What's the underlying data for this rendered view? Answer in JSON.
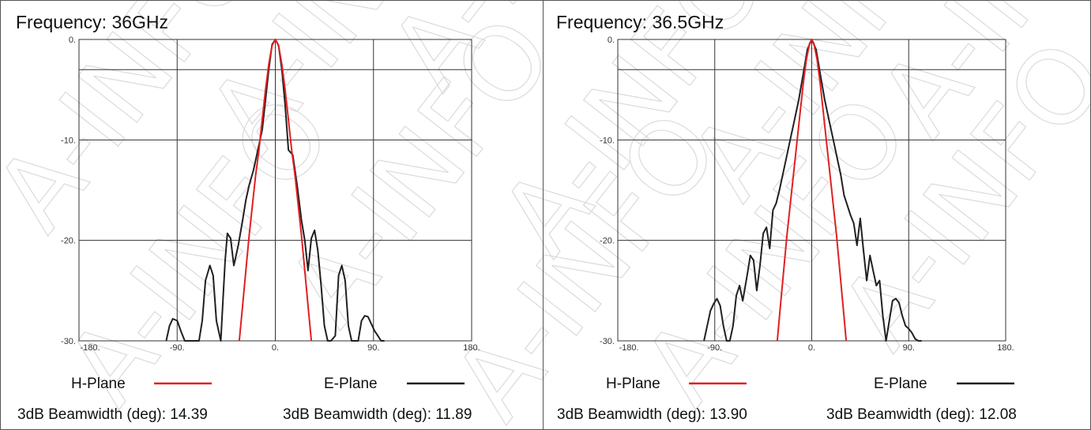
{
  "watermark": "A-INFO",
  "chart_data": [
    {
      "type": "line",
      "title": "Frequency: 36GHz",
      "x_ticks": [
        "-180.",
        "-90.",
        "0.",
        "90.",
        "180."
      ],
      "y_ticks": [
        "0.",
        "-10.",
        "-20.",
        "-30."
      ],
      "xlim": [
        -180,
        180
      ],
      "ylim": [
        -30,
        0
      ],
      "grid": true,
      "legend_position": "bottom",
      "series": [
        {
          "name": "H-Plane",
          "color": "#e02020",
          "x": [
            -33,
            -30,
            -27,
            -24,
            -21,
            -18,
            -15,
            -12,
            -9,
            -6,
            -3,
            0,
            3,
            6,
            9,
            12,
            15,
            18,
            21,
            24,
            27,
            30,
            33
          ],
          "y": [
            -30,
            -26.5,
            -23,
            -19.5,
            -16.5,
            -13.5,
            -11,
            -8,
            -5,
            -2.5,
            -0.6,
            0,
            -0.6,
            -2.5,
            -5,
            -8,
            -11,
            -13.5,
            -16.5,
            -19.5,
            -23,
            -26.5,
            -30
          ]
        },
        {
          "name": "E-Plane",
          "color": "#202020",
          "x": [
            -100,
            -97,
            -94,
            -90,
            -86,
            -83,
            -80,
            -77,
            -74,
            -70,
            -67,
            -64,
            -60,
            -57,
            -54,
            -50,
            -48,
            -46,
            -44,
            -41,
            -38,
            -34,
            -30,
            -27,
            -24,
            -20,
            -16,
            -12,
            -9,
            -6,
            -3,
            0,
            3,
            6,
            9,
            12,
            16,
            20,
            24,
            27,
            30,
            33,
            36,
            39,
            42,
            45,
            48,
            51,
            55,
            58,
            61,
            64,
            67,
            70,
            73,
            76,
            79,
            82,
            85,
            88,
            91,
            94,
            97,
            100
          ],
          "y": [
            -30,
            -28.5,
            -27.8,
            -28,
            -29.2,
            -30,
            -30,
            -30,
            -30,
            -30,
            -28,
            -24,
            -22.5,
            -23.5,
            -28,
            -30,
            -26,
            -22,
            -19.3,
            -19.8,
            -22.5,
            -20.5,
            -18,
            -16,
            -14.5,
            -13,
            -11,
            -9,
            -6,
            -3,
            -0.5,
            0,
            -0.6,
            -3,
            -6.5,
            -11,
            -11.5,
            -14.5,
            -18,
            -20,
            -23,
            -19.8,
            -19,
            -21,
            -24.5,
            -28.5,
            -30,
            -30,
            -29.5,
            -23.5,
            -22.5,
            -24,
            -28.5,
            -30,
            -30,
            -30,
            -28,
            -27.5,
            -27.6,
            -28.3,
            -29,
            -29.5,
            -30,
            -30
          ]
        }
      ],
      "beamwidth_label": "3dB Beamwidth (deg):",
      "h_beamwidth": "14.39",
      "e_beamwidth": "11.89"
    },
    {
      "type": "line",
      "title": "Frequency: 36.5GHz",
      "x_ticks": [
        "-180.",
        "-90.",
        "0.",
        "90.",
        "180."
      ],
      "y_ticks": [
        "0.",
        "-10.",
        "-20.",
        "-30."
      ],
      "xlim": [
        -180,
        180
      ],
      "ylim": [
        -30,
        0
      ],
      "grid": true,
      "legend_position": "bottom",
      "series": [
        {
          "name": "H-Plane",
          "color": "#e02020",
          "x": [
            -32,
            -29,
            -26,
            -23,
            -20,
            -17,
            -14,
            -11,
            -8,
            -5,
            -2,
            0,
            2,
            5,
            8,
            11,
            14,
            17,
            20,
            23,
            26,
            29,
            32
          ],
          "y": [
            -30,
            -26.5,
            -23,
            -19.5,
            -16.5,
            -13.5,
            -10.5,
            -7.5,
            -4.5,
            -2,
            -0.4,
            0,
            -0.4,
            -2,
            -4.5,
            -7.5,
            -10.5,
            -13.5,
            -16.5,
            -19.5,
            -23,
            -26.5,
            -30
          ]
        },
        {
          "name": "E-Plane",
          "color": "#202020",
          "x": [
            -100,
            -97,
            -94,
            -91,
            -88,
            -85,
            -82,
            -79,
            -76,
            -73,
            -70,
            -67,
            -64,
            -60,
            -57,
            -54,
            -51,
            -48,
            -45,
            -42,
            -39,
            -36,
            -33,
            -30,
            -27,
            -24,
            -20,
            -16,
            -12,
            -8,
            -4,
            0,
            4,
            8,
            12,
            16,
            20,
            24,
            27,
            30,
            33,
            36,
            39,
            42,
            45,
            48,
            51,
            54,
            57,
            60,
            63,
            66,
            69,
            72,
            75,
            78,
            81,
            84,
            87,
            90,
            93,
            96,
            99,
            102
          ],
          "y": [
            -30,
            -28.5,
            -27,
            -26.3,
            -25.8,
            -26.5,
            -28.5,
            -30,
            -30,
            -28.5,
            -25.5,
            -24.5,
            -26,
            -23.5,
            -21.5,
            -22,
            -25,
            -22.5,
            -19.3,
            -18.7,
            -20.8,
            -17,
            -16.3,
            -15,
            -13.5,
            -12,
            -10,
            -8,
            -6,
            -3.5,
            -1,
            0,
            -1,
            -3.5,
            -6,
            -8,
            -10,
            -12,
            -13.5,
            -15.5,
            -16.5,
            -17.5,
            -18.3,
            -20.5,
            -17.8,
            -21,
            -24,
            -21.5,
            -23,
            -24.5,
            -24,
            -27.5,
            -30,
            -28,
            -26,
            -25.8,
            -26.2,
            -27.5,
            -28.5,
            -28.8,
            -29.2,
            -29.8,
            -30,
            -30
          ]
        }
      ],
      "beamwidth_label": "3dB Beamwidth (deg):",
      "h_beamwidth": "13.90",
      "e_beamwidth": "12.08"
    }
  ]
}
